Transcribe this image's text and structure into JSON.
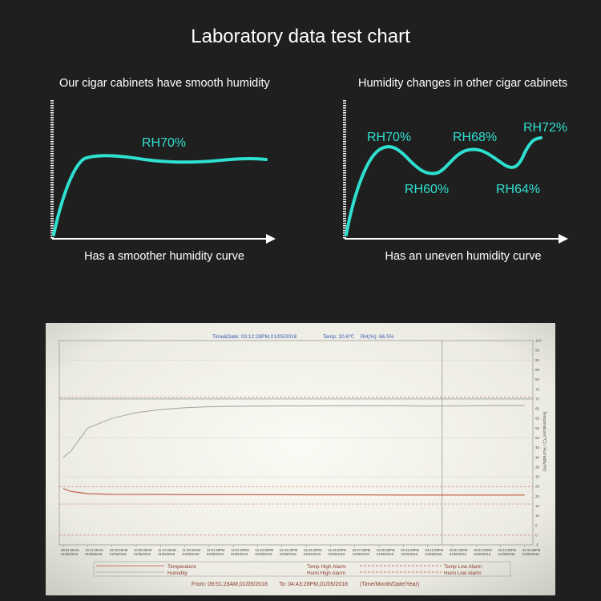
{
  "page": {
    "title": "Laboratory data test chart"
  },
  "panels": [
    {
      "title": "Our cigar cabinets have smooth humidity",
      "caption": "Has a smoother humidity curve",
      "labels": [
        "RH70%"
      ]
    },
    {
      "title": "Humidity changes in other cigar cabinets",
      "caption": "Has an uneven humidity curve",
      "labels": [
        "RH70%",
        "RH60%",
        "RH68%",
        "RH64%",
        "RH72%"
      ]
    }
  ],
  "chart_data": {
    "type": "line",
    "header": {
      "time_date": "Time&Date: 03:12:28PM,01/05/2018",
      "temp": "Temp: 20.6℃",
      "rh": "RH(%): 66.5%"
    },
    "ylabel": "Temperature(℃) / Humidity(%)",
    "ylim": [
      -5,
      100
    ],
    "y_ticks": [
      100,
      95,
      90,
      85,
      80,
      75,
      70,
      65,
      60,
      55,
      50,
      45,
      40,
      35,
      30,
      25,
      20,
      15,
      10,
      5,
      0,
      -5
    ],
    "x_ticks": [
      {
        "time": "09:51:28AM",
        "date": "01/05/2018"
      },
      {
        "time": "10:11:28AM",
        "date": "01/05/2018"
      },
      {
        "time": "10:33:28AM",
        "date": "01/05/2018"
      },
      {
        "time": "10:55:28AM",
        "date": "01/05/2018"
      },
      {
        "time": "11:17:28AM",
        "date": "01/05/2018"
      },
      {
        "time": "11:39:28AM",
        "date": "01/05/2018"
      },
      {
        "time": "12:01:28PM",
        "date": "01/05/2018"
      },
      {
        "time": "12:22:28PM",
        "date": "01/05/2018"
      },
      {
        "time": "12:43:28PM",
        "date": "01/05/2018"
      },
      {
        "time": "01:04:28PM",
        "date": "01/05/2018"
      },
      {
        "time": "01:25:28PM",
        "date": "01/05/2018"
      },
      {
        "time": "01:46:28PM",
        "date": "01/05/2018"
      },
      {
        "time": "02:07:28PM",
        "date": "01/05/2018"
      },
      {
        "time": "02:28:28PM",
        "date": "01/05/2018"
      },
      {
        "time": "02:49:28PM",
        "date": "01/05/2018"
      },
      {
        "time": "03:10:28PM",
        "date": "01/05/2018"
      },
      {
        "time": "03:31:28PM",
        "date": "01/05/2018"
      },
      {
        "time": "03:52:28PM",
        "date": "01/05/2018"
      },
      {
        "time": "04:13:28PM",
        "date": "01/05/2018"
      },
      {
        "time": "04:34:28PM",
        "date": "01/05/2018"
      }
    ],
    "series": [
      {
        "name": "Humidity",
        "x": [
          0,
          0.3,
          1,
          2,
          3,
          4,
          5,
          6,
          7,
          8,
          9,
          10,
          11,
          12,
          13,
          14,
          15,
          16,
          17,
          18,
          19
        ],
        "values": [
          40,
          43,
          55,
          60,
          63,
          64.5,
          65.5,
          66,
          66.2,
          66.3,
          66.4,
          66.4,
          66.5,
          66.5,
          66.5,
          66.5,
          66.3,
          66.4,
          66.5,
          66.6,
          66.6
        ]
      },
      {
        "name": "Temperature",
        "x": [
          0,
          0.3,
          1,
          2,
          4,
          6,
          8,
          10,
          12,
          14,
          16,
          18,
          19
        ],
        "values": [
          24,
          22.5,
          21.3,
          21,
          20.9,
          20.8,
          20.8,
          20.7,
          20.7,
          20.6,
          20.6,
          20.6,
          20.6
        ]
      }
    ],
    "alarm_lines": [
      {
        "name": "Humi High Alarm",
        "value": 71
      },
      {
        "name": "Temp High Alarm",
        "value": 25
      },
      {
        "name": "Temp Low Alarm",
        "value": 16
      },
      {
        "name": "Humi Low Alarm",
        "value": 0
      }
    ],
    "cursor_x": 15.6,
    "legend": {
      "temperature": "Temperature",
      "humidity": "Humidity",
      "temp_high_alarm": "Temp High Alarm",
      "humi_high_alarm": "Humi High Alarm",
      "temp_low_alarm": "Temp Low Alarm",
      "humi_low_alarm": "Humi Low Alarm"
    },
    "range": {
      "from": "From: 09:51:28AM,01/05/2018",
      "to": "To: 04:43:28PM,01/05/2018",
      "format": "(Time/Month/Date/Year)"
    },
    "colors": {
      "panel_curve": "#2ee0d0",
      "humidity": "#a9a9a9",
      "temperature": "#c0503a",
      "alarm_lines": "#c0503a",
      "header_text": "#3458b4"
    }
  }
}
